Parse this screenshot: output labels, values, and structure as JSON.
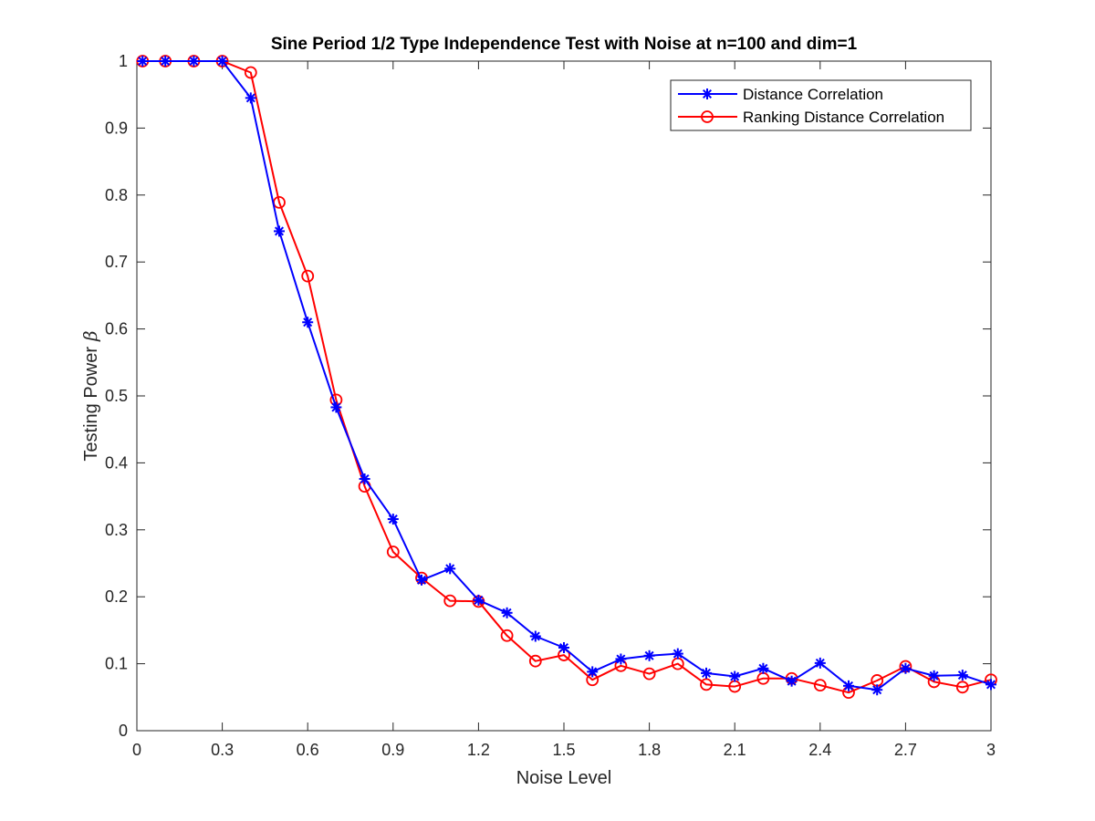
{
  "chart_data": {
    "type": "line",
    "title": "Sine Period 1/2 Type Independence Test with Noise at n=100 and dim=1",
    "xlabel": "Noise Level",
    "ylabel": "Testing Power",
    "ylabel_symbol": "β",
    "xlim": [
      0,
      3
    ],
    "ylim": [
      0,
      1
    ],
    "xticks": [
      "0",
      "0.3",
      "0.6",
      "0.9",
      "1.2",
      "1.5",
      "1.8",
      "2.1",
      "2.4",
      "2.7",
      "3"
    ],
    "yticks": [
      "0",
      "0.1",
      "0.2",
      "0.3",
      "0.4",
      "0.5",
      "0.6",
      "0.7",
      "0.8",
      "0.9",
      "1"
    ],
    "grid": false,
    "legend_position": "top-right",
    "x": [
      0.02,
      0.1,
      0.2,
      0.3,
      0.4,
      0.5,
      0.6,
      0.7,
      0.8,
      0.9,
      1.0,
      1.1,
      1.2,
      1.3,
      1.4,
      1.5,
      1.6,
      1.7,
      1.8,
      1.9,
      2.0,
      2.1,
      2.2,
      2.3,
      2.4,
      2.5,
      2.6,
      2.7,
      2.8,
      2.9,
      3.0
    ],
    "series": [
      {
        "name": "Distance Correlation",
        "color": "#0000ff",
        "marker": "asterisk",
        "values": [
          1.0,
          1.0,
          1.0,
          1.0,
          0.945,
          0.746,
          0.61,
          0.483,
          0.376,
          0.316,
          0.225,
          0.242,
          0.195,
          0.176,
          0.141,
          0.124,
          0.088,
          0.107,
          0.112,
          0.115,
          0.086,
          0.081,
          0.093,
          0.074,
          0.101,
          0.067,
          0.061,
          0.093,
          0.082,
          0.083,
          0.069
        ]
      },
      {
        "name": "Ranking Distance Correlation",
        "color": "#ff0000",
        "marker": "circle",
        "values": [
          1.0,
          1.0,
          1.0,
          1.0,
          0.983,
          0.789,
          0.679,
          0.494,
          0.365,
          0.267,
          0.228,
          0.194,
          0.193,
          0.142,
          0.104,
          0.113,
          0.076,
          0.097,
          0.085,
          0.1,
          0.069,
          0.066,
          0.078,
          0.078,
          0.068,
          0.057,
          0.075,
          0.096,
          0.073,
          0.065,
          0.076
        ]
      }
    ]
  }
}
